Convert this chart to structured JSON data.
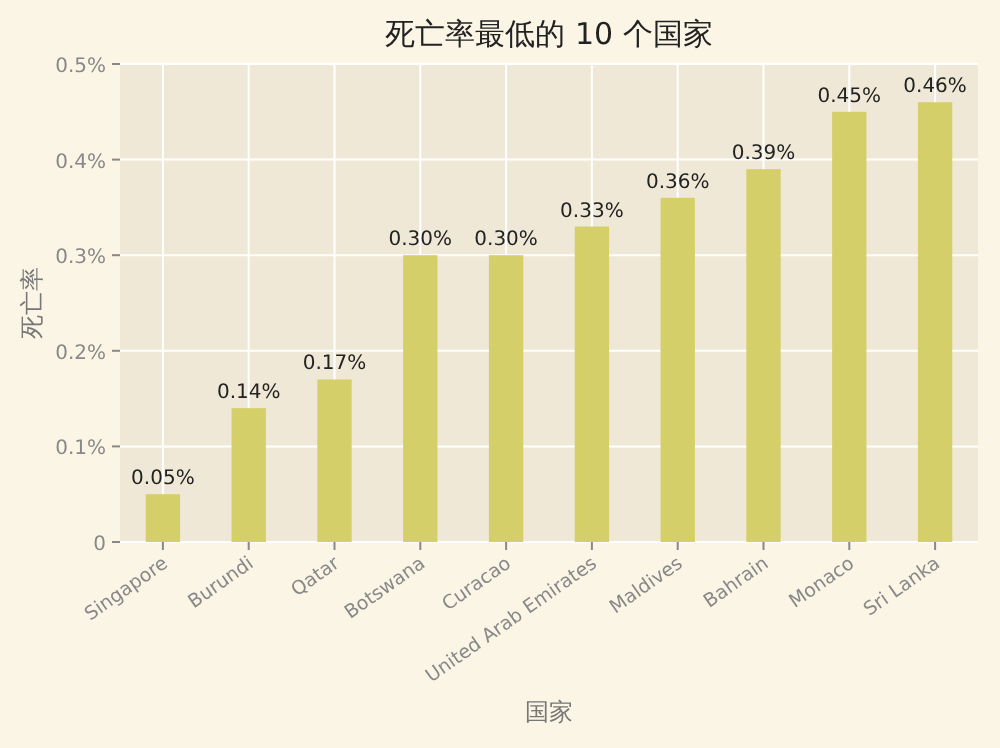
{
  "chart_data": {
    "type": "bar",
    "title": "死亡率最低的 10 个国家",
    "xlabel": "国家",
    "ylabel": "死亡率",
    "categories": [
      "Singapore",
      "Burundi",
      "Qatar",
      "Botswana",
      "Curacao",
      "United Arab Emirates",
      "Maldives",
      "Bahrain",
      "Monaco",
      "Sri Lanka"
    ],
    "values": [
      0.05,
      0.14,
      0.17,
      0.3,
      0.3,
      0.33,
      0.36,
      0.39,
      0.45,
      0.46
    ],
    "value_labels": [
      "0.05%",
      "0.14%",
      "0.17%",
      "0.30%",
      "0.30%",
      "0.33%",
      "0.36%",
      "0.39%",
      "0.45%",
      "0.46%"
    ],
    "color": "#d4cf68",
    "ylim": [
      0,
      0.5
    ],
    "yticks": [
      0,
      {
        "value": 0.1,
        "label": "0.1%"
      },
      {
        "value": 0.2,
        "label": "0.2%"
      },
      {
        "value": 0.3,
        "label": "0.3%"
      },
      {
        "value": 0.4,
        "label": "0.4%"
      },
      {
        "value": 0.5,
        "label": "0.5%"
      }
    ],
    "grid": true
  }
}
